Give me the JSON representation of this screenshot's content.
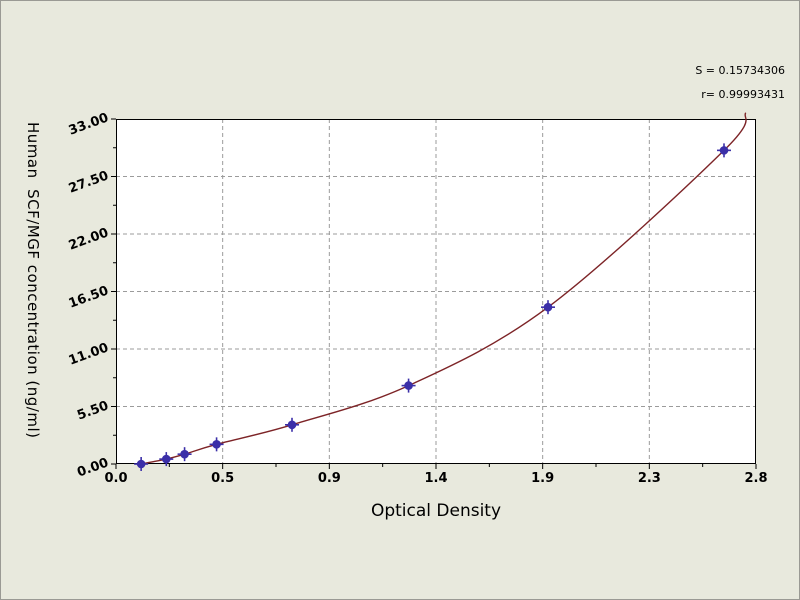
{
  "chart_data": {
    "type": "scatter",
    "title": "",
    "xlabel": "Optical Density",
    "ylabel": "Human  SCF/MGF concentration (ng/ml)",
    "xlim": [
      0,
      2.8
    ],
    "ylim": [
      0,
      33
    ],
    "x_divisions": 6,
    "y_divisions": 6,
    "x_tick_labels": [
      "0.0",
      "0.5",
      "0.9",
      "1.4",
      "1.9",
      "2.3",
      "2.8"
    ],
    "y_tick_labels": [
      "0.00",
      "5.50",
      "11.00",
      "16.50",
      "22.00",
      "27.50",
      "33.00"
    ],
    "grid": "dashed",
    "legend": "none",
    "annotations": [
      "S = 0.15734306",
      "r= 0.99993431"
    ],
    "series": [
      {
        "name": "standard-curve-points",
        "points": [
          {
            "x": 0.11,
            "y": 0.0
          },
          {
            "x": 0.22,
            "y": 0.47
          },
          {
            "x": 0.3,
            "y": 0.94
          },
          {
            "x": 0.44,
            "y": 1.88
          },
          {
            "x": 0.77,
            "y": 3.75
          },
          {
            "x": 1.28,
            "y": 7.5
          },
          {
            "x": 1.89,
            "y": 15.0
          },
          {
            "x": 2.66,
            "y": 30.0
          }
        ]
      }
    ],
    "curve_end": {
      "x": 2.755,
      "y": 33.6
    },
    "colors": {
      "curve": "#7d2427",
      "marker": "#3b2fa8",
      "grid": "#9b9b9b",
      "background": "#e8e9dd",
      "plot_background": "#ffffff"
    }
  }
}
